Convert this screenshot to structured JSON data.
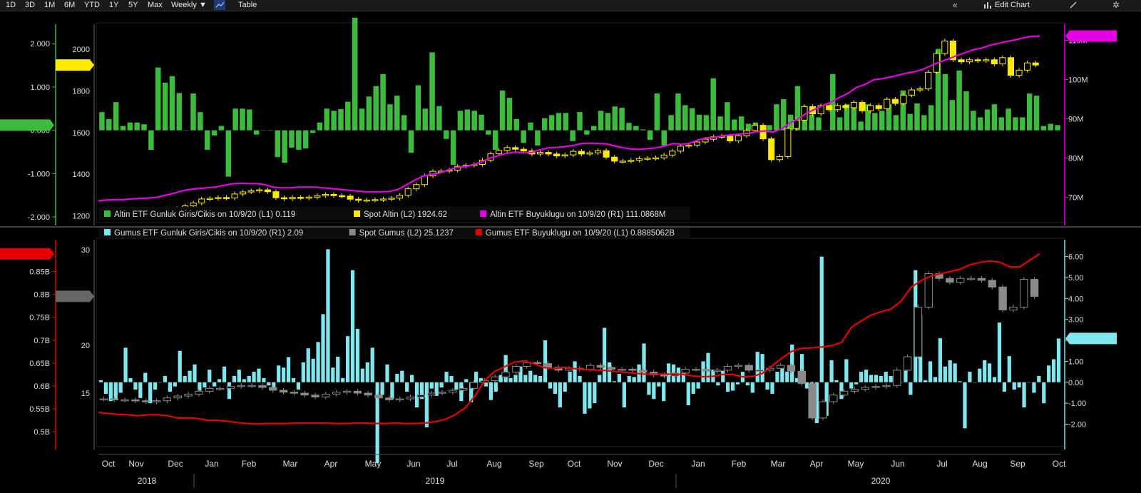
{
  "toolbar": {
    "ranges": [
      "1D",
      "3D",
      "1M",
      "6M",
      "YTD",
      "1Y",
      "5Y",
      "Max"
    ],
    "period": "Weekly",
    "table_label": "Table",
    "edit_chart_label": "Edit Chart",
    "period_arrow": "▼"
  },
  "chart_data": [
    {
      "type": "bar",
      "panel": "top",
      "series": [
        {
          "name": "Altin ETF Gunluk Giris/Cikis on 10/9/20 (L1) 0.119",
          "color": "#3dbb3d",
          "kind": "bar",
          "axis": "L1",
          "values": [
            0.42,
            0.26,
            0.65,
            0.1,
            0.18,
            0.18,
            0.14,
            -0.45,
            1.45,
            1.1,
            1.25,
            0.86,
            0.0,
            0.85,
            0.42,
            -0.45,
            -0.12,
            0.1,
            -1.07,
            0.5,
            0.5,
            0.48,
            -0.1,
            0.0,
            0.0,
            -0.62,
            -0.75,
            -0.4,
            -0.45,
            -0.42,
            -0.06,
            0.18,
            0.5,
            0.45,
            0.49,
            0.66,
            2.6,
            0.5,
            0.78,
            1.02,
            1.3,
            0.6,
            0.8,
            0.35,
            -0.52,
            1.04,
            0.5,
            1.8,
            0.56,
            -0.2,
            -0.8,
            0.45,
            0.48,
            0.45,
            0.36,
            -0.1,
            -0.45,
            0.92,
            0.75,
            0.26,
            -0.29,
            0.18,
            -0.35,
            0.28,
            0.35,
            0.4,
            0.4,
            -0.25,
            0.42,
            -0.1,
            0.1,
            0.45,
            0.4,
            0.55,
            0.52,
            0.17,
            0.1,
            0.02,
            -0.22,
            0.85,
            -0.35,
            0.35,
            0.85,
            0.58,
            0.51,
            0.36,
            0.35,
            1.2,
            0.32,
            0.65,
            0.25,
            0.32,
            0.15,
            0.18,
            0.0,
            0.12,
            0.6,
            0.72,
            0.36,
            1.02,
            0.56,
            0.36,
            0.3,
            0.0,
            1.3,
            0.3,
            0.6,
            0.6,
            0.2,
            0.6,
            0.4,
            0.45,
            0.6,
            0.35,
            0.92,
            0.38,
            0.62,
            0.35,
            0.58,
            1.88,
            1.3,
            0.7,
            1.38,
            0.9,
            0.45,
            0.3,
            0.48,
            0.6,
            0.3,
            0.5,
            0.3,
            0.3,
            0.85,
            0.8,
            0.1,
            0.15,
            0.12
          ]
        },
        {
          "name": "Spot Altin (L2) 1924.62",
          "color": "#ffea00",
          "kind": "candle",
          "axis": "L2",
          "values": [
            1223,
            1225,
            1221,
            1215,
            1212,
            1210,
            1208,
            1208,
            1222,
            1235,
            1248,
            1262,
            1281,
            1284,
            1288,
            1286,
            1305,
            1315,
            1320,
            1325,
            1316,
            1287,
            1282,
            1289,
            1286,
            1290,
            1297,
            1303,
            1297,
            1295,
            1280,
            1275,
            1276,
            1278,
            1281,
            1285,
            1299,
            1330,
            1350,
            1392,
            1414,
            1415,
            1420,
            1438,
            1443,
            1447,
            1468,
            1498,
            1514,
            1528,
            1520,
            1512,
            1497,
            1505,
            1497,
            1488,
            1493,
            1510,
            1497,
            1503,
            1513,
            1482,
            1463,
            1463,
            1467,
            1475,
            1477,
            1479,
            1492,
            1511,
            1535,
            1540,
            1555,
            1568,
            1580,
            1583,
            1560,
            1585,
            1610,
            1635,
            1570,
            1470,
            1485,
            1620,
            1660,
            1725,
            1690,
            1730,
            1710,
            1730,
            1720,
            1745,
            1705,
            1730,
            1715,
            1760,
            1740,
            1780,
            1805,
            1810,
            1890,
            1980,
            2040,
            1950,
            1940,
            1950,
            1945,
            1950,
            1930,
            1960,
            1875,
            1900,
            1935,
            1924.62
          ]
        },
        {
          "name": "Altin ETF Buyuklugu on 10/9/20 (R1) 111.0868M",
          "color": "#e600e6",
          "kind": "line",
          "axis": "R1",
          "values": [
            69.1,
            69.3,
            69.4,
            69.4,
            69.6,
            69.7,
            69.8,
            70.0,
            70.5,
            71.0,
            71.6,
            72.0,
            72.2,
            72.4,
            72.6,
            73.0,
            73.4,
            73.6,
            73.5,
            73.5,
            73.2,
            72.6,
            72.4,
            72.4,
            72.6,
            72.6,
            72.6,
            72.4,
            72.2,
            72.0,
            71.8,
            71.6,
            71.4,
            71.4,
            71.4,
            71.5,
            72.0,
            73.2,
            74.4,
            75.4,
            75.8,
            76.2,
            77.0,
            77.6,
            77.8,
            78.3,
            79.0,
            80.0,
            80.6,
            81.2,
            81.5,
            81.4,
            81.4,
            82.1,
            82.6,
            82.7,
            82.9,
            83.2,
            83.7,
            83.8,
            83.7,
            83.6,
            83.1,
            82.6,
            82.3,
            82.2,
            82.4,
            82.6,
            83.1,
            83.7,
            83.5,
            83.8,
            84.6,
            85.1,
            85.3,
            85.7,
            85.9,
            86.1,
            86.3,
            86.7,
            86.9,
            86.6,
            87.4,
            88.9,
            90.0,
            91.4,
            92.4,
            93.4,
            94.3,
            95.5,
            96.5,
            98.0,
            98.7,
            99.9,
            100.2,
            100.6,
            101.1,
            101.6,
            102.0,
            102.6,
            103.6,
            104.5,
            105.2,
            106.1,
            106.8,
            107.6,
            108.0,
            108.7,
            109.2,
            109.7,
            110.1,
            110.6,
            111.0,
            111.0868
          ]
        }
      ],
      "left_axis_L1": {
        "ticks": [
          "2.000",
          "1.000",
          "0.000",
          "-1.000",
          "-2.000"
        ],
        "range": [
          -2.0,
          2.35
        ]
      },
      "left_axis_L2": {
        "ticks": [
          "2000",
          "1800",
          "1600",
          "1400",
          "1200"
        ],
        "range": [
          1195,
          2100
        ]
      },
      "right_axis_R1": {
        "ticks": [
          "110M",
          "100M",
          "90M",
          "80M",
          "70M"
        ],
        "range": [
          65,
          113
        ]
      },
      "flags": {
        "left_L1": "0.119",
        "left_L2": "1924.62",
        "right_R1": "111.0868M"
      }
    },
    {
      "type": "bar",
      "panel": "bottom",
      "series": [
        {
          "name": "Gumus ETF Gunluk Giris/Cikis on 10/9/20 (R1) 2.09",
          "color": "#7ee8ee",
          "kind": "bar",
          "axis": "R1",
          "values": [
            0.1,
            -0.55,
            -0.9,
            -0.85,
            -0.5,
            1.65,
            0.2,
            -0.35,
            -0.75,
            0.45,
            -1.0,
            -0.35,
            0.0,
            0.3,
            -0.45,
            -0.2,
            1.5,
            0.3,
            0.55,
            0.85,
            -0.4,
            -0.25,
            0.6,
            -0.2,
            0.15,
            0.75,
            -0.8,
            0.3,
            0.6,
            0.15,
            0.3,
            0.5,
            0.65,
            0.2,
            -0.15,
            -0.3,
            0.8,
            0.7,
            1.2,
            0.2,
            -0.35,
            0.95,
            1.62,
            1.12,
            1.92,
            3.25,
            6.35,
            0.7,
            1.22,
            0.2,
            2.2,
            5.35,
            2.55,
            0.65,
            0.95,
            1.65,
            -3.85,
            -0.6,
            0.85,
            -0.8,
            0.4,
            0.55,
            -0.45,
            0.35,
            -1.2,
            -0.8,
            -2.15,
            -0.3,
            -0.65,
            -0.25,
            0.5,
            0.3,
            -0.35,
            -0.9,
            0.15,
            -0.95,
            0.5,
            0.2,
            -0.2,
            -0.85,
            -0.45,
            0.35,
            1.3,
            0.2,
            0.35,
            0.75,
            0.35,
            0.55,
            0.35,
            0.3,
            2.0,
            -0.3,
            -0.55,
            -1.2,
            -0.45,
            0.5,
            1.0,
            0.3,
            -1.5,
            -1.25,
            -1.0,
            0.35,
            2.6,
            0.95,
            0.05,
            0.4,
            -1.2,
            0.3,
            0.25,
            0.85,
            1.85,
            -0.6,
            -0.8,
            -0.2,
            -0.9,
            0.9,
            0.85,
            0.7,
            0.5,
            -1.1,
            -0.55,
            -0.3,
            1.0,
            1.4,
            0.6,
            -0.15,
            0.55,
            -0.45,
            -0.4,
            -0.1,
            0.5,
            -0.15,
            -0.5,
            1.45,
            1.35,
            -0.35,
            -0.55,
            0.5,
            0.65,
            0.5,
            1.8,
            0.2,
            1.35,
            -0.3,
            -0.25,
            -1.95,
            6.0,
            -1.6,
            1.05,
            0.1,
            -0.8,
            1.1,
            -0.3,
            -0.1,
            0.5,
            0.6,
            0.35,
            0.35,
            0.3,
            0.5,
            0.3,
            0.2,
            0.0,
            0.55,
            -0.6,
            5.35,
            3.2,
            0.1,
            1.0,
            0.25,
            2.1,
            0.75,
            1.05,
            0.9,
            0.05,
            -2.2,
            0.5,
            0.0,
            0.65,
            1.05,
            0.9,
            0.25,
            2.85,
            -0.45,
            1.25,
            -0.35,
            -0.25,
            -1.2,
            0.0,
            -0.5,
            0.3,
            -1.0,
            0.8,
            1.1,
            2.09
          ]
        },
        {
          "name": "Spot Gumus (L2) 25.1237",
          "color": "#8a8a8a",
          "kind": "candle",
          "axis": "L2",
          "values": [
            14.4,
            14.3,
            14.3,
            14.2,
            14.1,
            14.2,
            14.5,
            14.7,
            14.9,
            15.2,
            15.5,
            15.5,
            15.7,
            15.8,
            15.8,
            15.6,
            15.3,
            15.1,
            15.0,
            14.8,
            14.6,
            14.9,
            15.1,
            15.2,
            15.0,
            14.8,
            14.5,
            14.3,
            14.4,
            14.6,
            14.8,
            15.0,
            15.1,
            15.3,
            15.5,
            16.1,
            16.3,
            16.7,
            17.2,
            17.8,
            18.2,
            18.1,
            17.7,
            17.4,
            17.6,
            17.5,
            17.9,
            17.7,
            17.5,
            17.5,
            17.4,
            17.2,
            16.9,
            16.8,
            17.1,
            17.5,
            17.5,
            17.3,
            17.4,
            17.8,
            17.9,
            17.4,
            17.4,
            17.6,
            17.9,
            17.3,
            16.0,
            12.4,
            14.1,
            14.8,
            15.2,
            15.4,
            15.6,
            15.7,
            15.8,
            17.4,
            18.8,
            24.0,
            27.5,
            27.0,
            26.6,
            27.0,
            27.0,
            26.8,
            26.1,
            23.7,
            24.0,
            26.9,
            25.1237
          ]
        },
        {
          "name": "Gumus ETF Buyuklugu on 10/9/20 (L1) 0.8885062B",
          "color": "#e60000",
          "kind": "line",
          "axis": "L1",
          "values": [
            0.542,
            0.54,
            0.538,
            0.537,
            0.535,
            0.537,
            0.537,
            0.535,
            0.53,
            0.53,
            0.529,
            0.525,
            0.525,
            0.523,
            0.52,
            0.518,
            0.517,
            0.518,
            0.518,
            0.518,
            0.519,
            0.519,
            0.519,
            0.519,
            0.518,
            0.518,
            0.519,
            0.519,
            0.518,
            0.518,
            0.519,
            0.518,
            0.518,
            0.519,
            0.522,
            0.527,
            0.537,
            0.552,
            0.578,
            0.612,
            0.632,
            0.642,
            0.652,
            0.655,
            0.648,
            0.64,
            0.638,
            0.641,
            0.638,
            0.636,
            0.635,
            0.634,
            0.632,
            0.63,
            0.628,
            0.626,
            0.626,
            0.626,
            0.626,
            0.625,
            0.622,
            0.62,
            0.621,
            0.625,
            0.625,
            0.62,
            0.621,
            0.627,
            0.644,
            0.661,
            0.676,
            0.682,
            0.683,
            0.685,
            0.688,
            0.695,
            0.728,
            0.742,
            0.755,
            0.762,
            0.768,
            0.785,
            0.815,
            0.83,
            0.84,
            0.845,
            0.85,
            0.855,
            0.865,
            0.87,
            0.873,
            0.87,
            0.86,
            0.86,
            0.875,
            0.8885062
          ]
        }
      ],
      "left_axis_L1": {
        "ticks": [
          "0.85B",
          "0.8B",
          "0.75B",
          "0.7B",
          "0.65B",
          "0.6B",
          "0.55B",
          "0.5B"
        ],
        "range": [
          0.48,
          0.91
        ]
      },
      "left_axis_L2": {
        "ticks": [
          "30",
          "20",
          "15"
        ],
        "range": [
          10.0,
          30.6
        ]
      },
      "right_axis_R1": {
        "ticks": [
          "6.00",
          "5.00",
          "4.00",
          "3.00",
          "2.00",
          "1.00",
          "0.00",
          "-1.00",
          "-2.00"
        ],
        "range": [
          -2.8,
          6.6
        ]
      },
      "flags": {
        "left_L1": "0.8885062B",
        "left_L2": "25.1237",
        "right_R1": "2.09"
      }
    }
  ],
  "x_axis": {
    "months": [
      "Oct",
      "Nov",
      "Dec",
      "Jan",
      "Feb",
      "Mar",
      "Apr",
      "May",
      "Jun",
      "Jul",
      "Aug",
      "Sep",
      "Oct",
      "Nov",
      "Dec",
      "Jan",
      "Feb",
      "Mar",
      "Apr",
      "May",
      "Jun",
      "Jul",
      "Aug",
      "Sep",
      "Oct"
    ],
    "years": [
      "2018",
      "2019",
      "2020"
    ]
  },
  "colors": {
    "background": "#000000",
    "toolbar": "#1a1a1a",
    "axis_green": "#3dbb3d",
    "axis_magenta": "#e600e6",
    "axis_red": "#e60000",
    "axis_cyan": "#7ee8ee"
  }
}
